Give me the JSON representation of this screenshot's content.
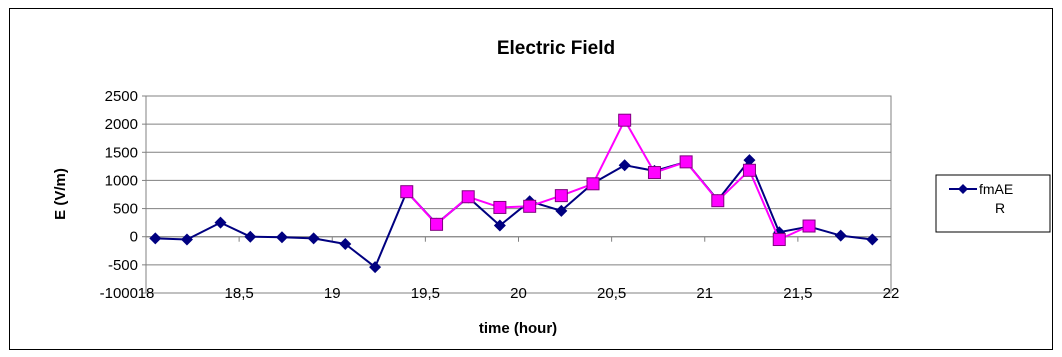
{
  "chart_data": {
    "type": "line",
    "title": "Electric Field",
    "xlabel": "time (hour)",
    "ylabel": "E (V/m)",
    "xlim": [
      18,
      22
    ],
    "ylim": [
      -1000,
      2500
    ],
    "x_ticks": [
      "18",
      "18,5",
      "19",
      "19,5",
      "20",
      "20,5",
      "21",
      "21,5",
      "22"
    ],
    "y_ticks": [
      "2500",
      "2000",
      "1500",
      "1000",
      "500",
      "0",
      "-500",
      "-1000"
    ],
    "grid": "horizontal",
    "legend_position": "right",
    "series": [
      {
        "name": "fmAER",
        "legend_lines": [
          "fmAE",
          "R"
        ],
        "color": "#000080",
        "marker": "diamond",
        "points": [
          [
            18.05,
            -30
          ],
          [
            18.22,
            -50
          ],
          [
            18.4,
            250
          ],
          [
            18.56,
            0
          ],
          [
            18.73,
            -10
          ],
          [
            18.9,
            -30
          ],
          [
            19.07,
            -130
          ],
          [
            19.23,
            -540
          ],
          [
            19.4,
            800
          ],
          [
            19.56,
            230
          ],
          [
            19.73,
            700
          ],
          [
            19.9,
            200
          ],
          [
            20.06,
            630
          ],
          [
            20.23,
            460
          ],
          [
            20.4,
            950
          ],
          [
            20.57,
            1270
          ],
          [
            20.73,
            1170
          ],
          [
            20.9,
            1330
          ],
          [
            21.07,
            650
          ],
          [
            21.24,
            1360
          ],
          [
            21.4,
            80
          ],
          [
            21.56,
            180
          ],
          [
            21.73,
            20
          ],
          [
            21.9,
            -50
          ]
        ]
      },
      {
        "name": "",
        "color": "#ff00ff",
        "marker": "square",
        "points": [
          [
            19.4,
            800
          ],
          [
            19.56,
            220
          ],
          [
            19.73,
            710
          ],
          [
            19.9,
            520
          ],
          [
            20.06,
            540
          ],
          [
            20.23,
            730
          ],
          [
            20.4,
            940
          ],
          [
            20.57,
            2070
          ],
          [
            20.73,
            1140
          ],
          [
            20.9,
            1330
          ],
          [
            21.07,
            640
          ],
          [
            21.24,
            1180
          ],
          [
            21.4,
            -50
          ],
          [
            21.56,
            190
          ]
        ]
      }
    ]
  }
}
